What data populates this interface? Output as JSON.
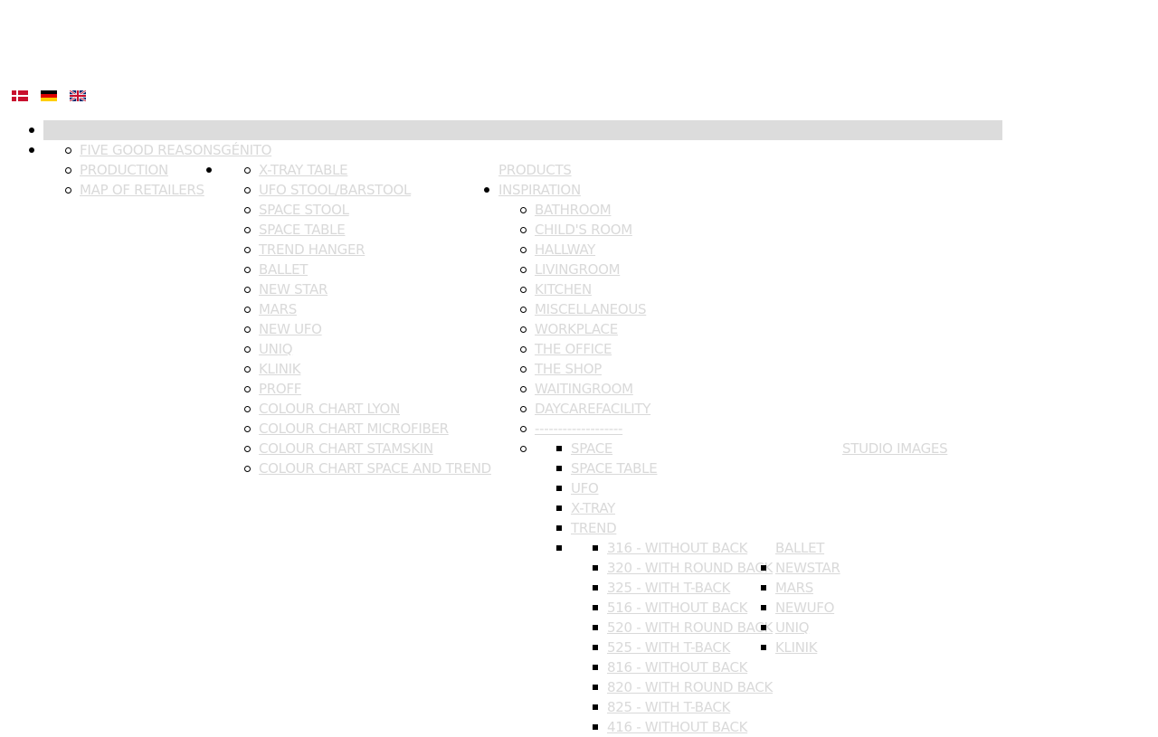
{
  "languages": [
    {
      "code": "da",
      "icon": "denmark-flag-icon"
    },
    {
      "code": "de",
      "icon": "germany-flag-icon"
    },
    {
      "code": "en",
      "icon": "uk-flag-icon"
    }
  ],
  "colors": {
    "link": "#d9d9d9",
    "bar": "#dcdcdc",
    "bullet": "#000000"
  },
  "menu": {
    "about": [
      "FIVE GOOD REASONSGÉNITO",
      "PRODUCTION",
      "MAP OF RETAILERS"
    ],
    "products": [
      "X-TRAY TABLE",
      "UFO STOOL/BARSTOOL",
      "SPACE STOOL",
      "SPACE TABLE",
      "TREND HANGER",
      "BALLET",
      "NEW STAR",
      "MARS",
      "NEW UFO",
      "UNIQ",
      "KLINIK",
      "PROFF",
      "COLOUR CHART LYON",
      "COLOUR CHART MICROFIBER",
      "COLOUR CHART STAMSKIN",
      "COLOUR CHART SPACE AND TREND"
    ],
    "products_label": "PRODUCTS",
    "inspiration_label": "INSPIRATION",
    "inspiration": [
      "BATHROOM",
      "CHILD'S ROOM",
      "HALLWAY",
      "LIVINGROOM",
      "KITCHEN",
      "MISCELLANEOUS",
      "WORKPLACE",
      "THE OFFICE",
      "THE SHOP",
      "WAITINGROOM",
      "DAYCAREFACILITY",
      "-------------------"
    ],
    "studio": [
      "SPACE",
      "SPACE TABLE",
      "UFO",
      "X-TRAY",
      "TREND"
    ],
    "studio_label": "STUDIO IMAGES",
    "trend_models": [
      "316 - WITHOUT BACK",
      "320 - WITH ROUND BACK",
      "325 - WITH T-BACK",
      "516 - WITHOUT BACK",
      "520 - WITH ROUND BACK",
      "525 - WITH T-BACK",
      "816 - WITHOUT BACK",
      "820 - WITH ROUND BACK",
      "825 - WITH T-BACK",
      "416 - WITHOUT BACK"
    ],
    "other_models": [
      "BALLET",
      "NEWSTAR",
      "MARS",
      "NEWUFO",
      "UNIQ",
      "KLINIK"
    ]
  }
}
